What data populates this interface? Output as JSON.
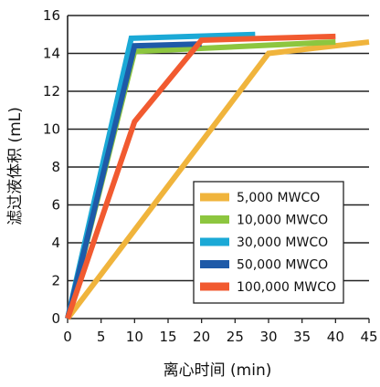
{
  "chart_data": {
    "type": "line",
    "title": "",
    "xlabel": "离心时间 (min)",
    "ylabel": "滤过液体积 (mL)",
    "xlim": [
      0,
      45
    ],
    "ylim": [
      0,
      16
    ],
    "x_ticks": [
      "0",
      "5",
      "10",
      "15",
      "20",
      "25",
      "30",
      "35",
      "40",
      "45"
    ],
    "y_ticks": [
      "0",
      "2",
      "4",
      "6",
      "8",
      "10",
      "12",
      "14",
      "16"
    ],
    "grid": "horizontal",
    "legend_position": "bottom-right",
    "series": [
      {
        "name": "5,000 MWCO",
        "color": "#F0B43C",
        "points": [
          [
            0,
            0
          ],
          [
            30,
            14.0
          ],
          [
            45,
            14.6
          ]
        ]
      },
      {
        "name": "10,000 MWCO",
        "color": "#8DC63F",
        "points": [
          [
            0,
            0
          ],
          [
            10,
            14.1
          ],
          [
            40,
            14.6
          ]
        ]
      },
      {
        "name": "30,000 MWCO",
        "color": "#1BA9D6",
        "points": [
          [
            0,
            0
          ],
          [
            9.5,
            14.8
          ],
          [
            28,
            15.0
          ]
        ]
      },
      {
        "name": "50,000 MWCO",
        "color": "#1E5AA8",
        "points": [
          [
            0,
            0
          ],
          [
            10,
            14.4
          ],
          [
            20,
            14.5
          ]
        ]
      },
      {
        "name": "100,000 MWCO",
        "color": "#F15A30",
        "points": [
          [
            0,
            0
          ],
          [
            10,
            10.4
          ],
          [
            20,
            14.7
          ],
          [
            40,
            14.9
          ]
        ]
      }
    ]
  }
}
